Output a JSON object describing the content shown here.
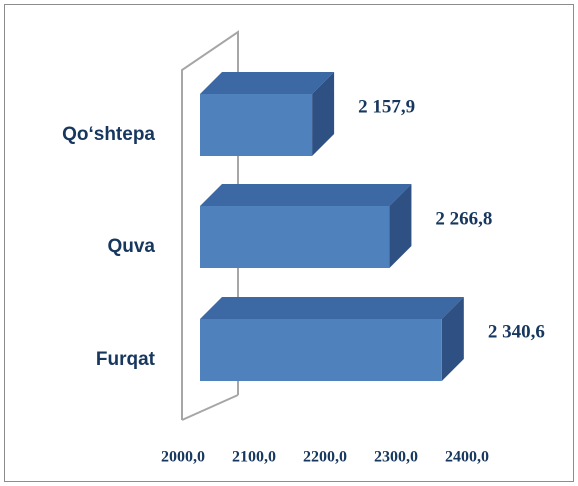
{
  "chart_data": {
    "type": "bar",
    "orientation": "horizontal",
    "categories": [
      "Qo‘shtepa",
      "Quva",
      "Furqat"
    ],
    "values": [
      2157.9,
      2266.8,
      2340.6
    ],
    "value_labels": [
      "2 157,9",
      "2 266,8",
      "2 340,6"
    ],
    "color": "#4f81bd",
    "xlim": [
      2000,
      2400
    ],
    "xticks": [
      {
        "value": 2000,
        "label": "2000,0"
      },
      {
        "value": 2100,
        "label": "2100,0"
      },
      {
        "value": 2200,
        "label": "2200,0"
      },
      {
        "value": 2300,
        "label": "2300,0"
      },
      {
        "value": 2400,
        "label": "2400,0"
      }
    ]
  }
}
